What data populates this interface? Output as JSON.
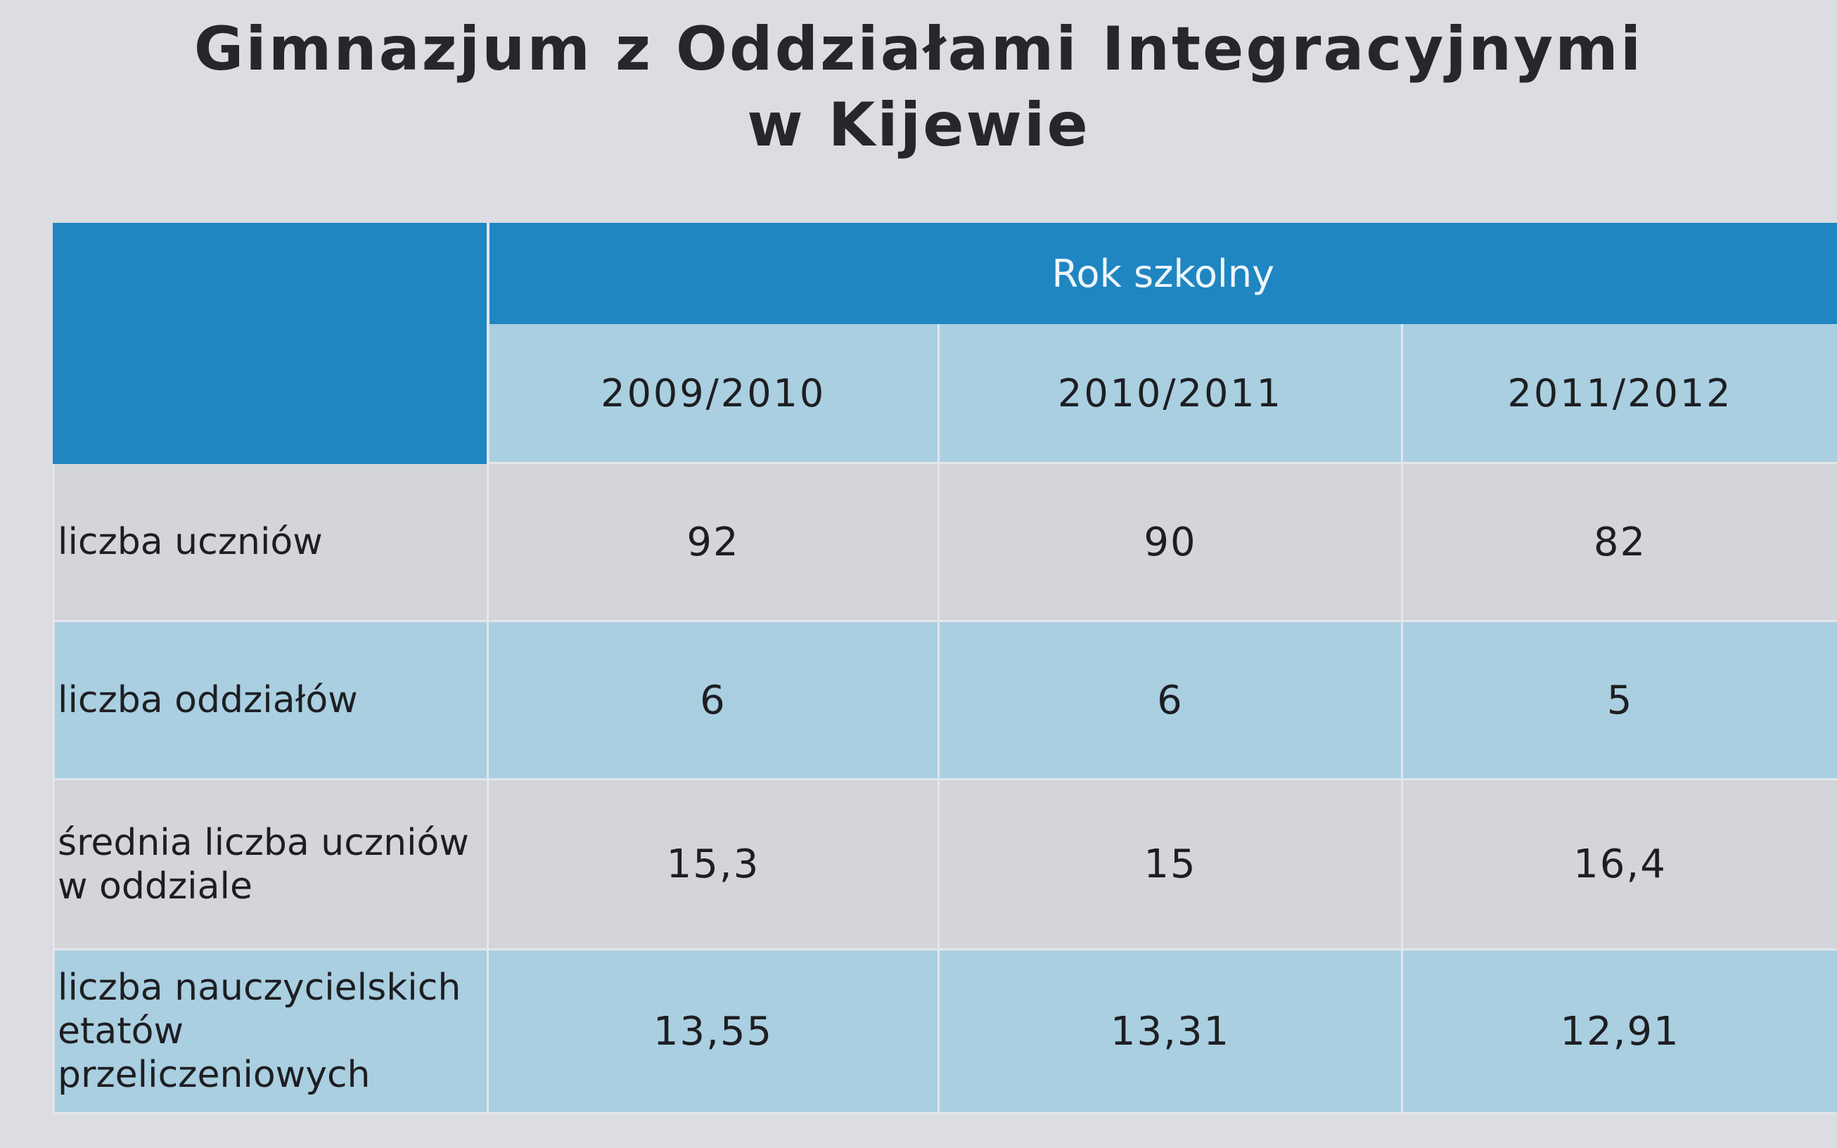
{
  "title": [
    "Gimnazjum z Oddziałami Integracyjnymi",
    "w Kijewie"
  ],
  "table": {
    "group_header": "Rok szkolny",
    "columns": [
      "2009/2010",
      "2010/2011",
      "2011/2012"
    ],
    "rows": [
      [
        "liczba uczniów",
        "92",
        "90",
        "82"
      ],
      [
        "liczba oddziałów",
        "6",
        "6",
        "5"
      ],
      [
        "średnia liczba uczniów w oddziale",
        "15,3",
        "15",
        "16,4"
      ],
      [
        "liczba nauczycielskich etatów przeliczeniowych",
        "13,55",
        "13,31",
        "12,91"
      ]
    ]
  }
}
